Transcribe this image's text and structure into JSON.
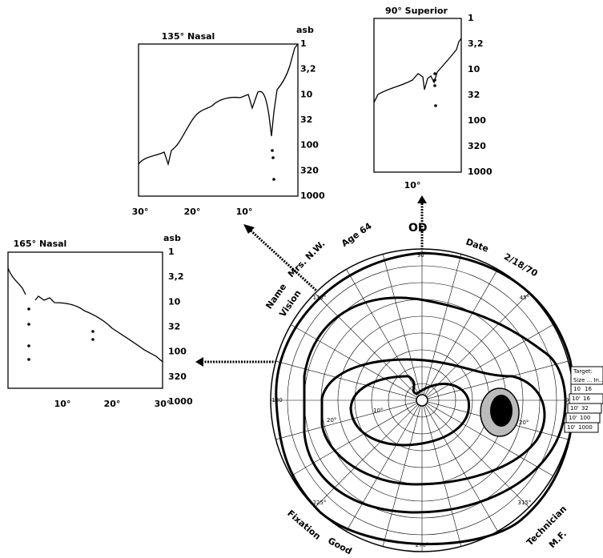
{
  "panels": [
    {
      "title": "135° Nasal",
      "unit": "asb",
      "y_labels": [
        "1",
        "3,2",
        "10",
        "32",
        "100",
        "320",
        "1000"
      ],
      "x_labels": [
        "30°",
        "20°",
        "10°"
      ]
    },
    {
      "title": "90° Superior",
      "y_labels": [
        "1",
        "3,2",
        "10",
        "32",
        "100",
        "320",
        "1000"
      ],
      "x_labels": [
        "10°"
      ]
    },
    {
      "title": "165° Nasal",
      "unit": "asb",
      "y_labels": [
        "1",
        "3,2",
        "10",
        "32",
        "100",
        "320",
        "1000"
      ],
      "x_labels": [
        "10°",
        "20°",
        "30°"
      ]
    }
  ],
  "perimeter": {
    "eye": "OD",
    "name_label": "Name",
    "name": "Mrs. N.W.",
    "age": "Age 64",
    "date_label": "Date",
    "date": "2/18/70",
    "vision": "Vision",
    "fixation_label": "Fixation",
    "fixation": "Good",
    "technician_label": "Technician",
    "technician": "M.F.",
    "angles": [
      "90°",
      "45°",
      "0",
      "315°",
      "270°",
      "225°",
      "180",
      "135°"
    ],
    "rings": [
      "10°",
      "20°",
      "20°"
    ],
    "target_table": {
      "title": "Target:",
      "header": "Size ... In...",
      "rows": [
        [
          "10",
          "16"
        ],
        [
          "10'",
          "16"
        ],
        [
          "10'",
          "32"
        ],
        [
          "10'",
          "100"
        ],
        [
          "10'",
          "1000"
        ]
      ]
    }
  }
}
